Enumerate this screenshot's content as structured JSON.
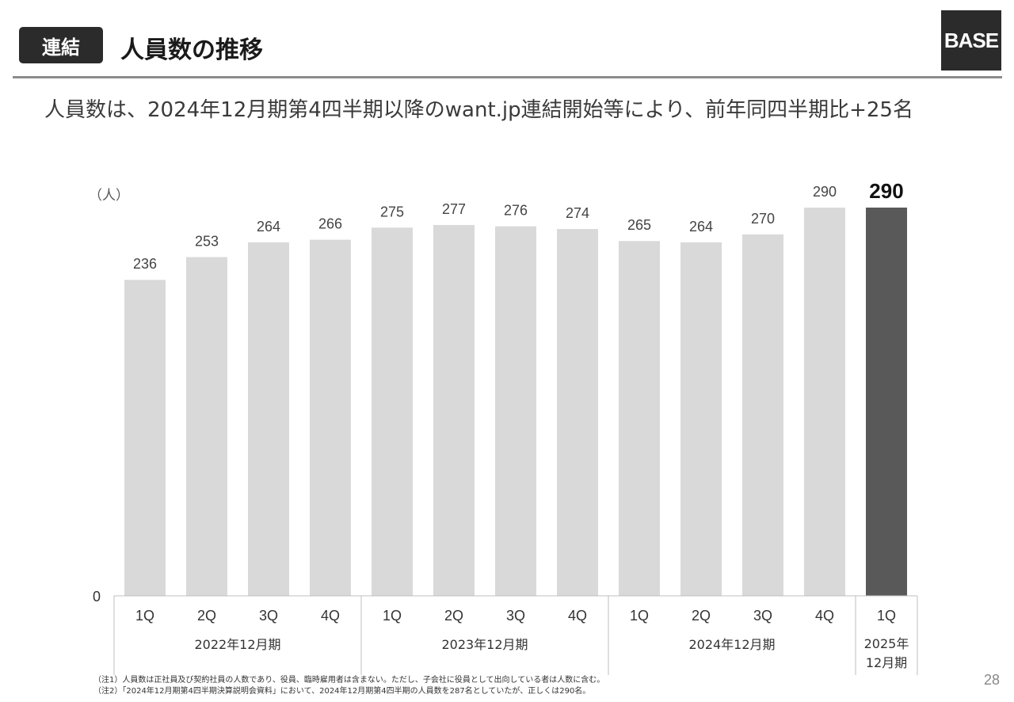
{
  "header": {
    "badge": "連結",
    "title": "人員数の推移",
    "logo": "BASE"
  },
  "subtitle": "人員数は、2024年12月期第4四半期以降のwant.jp連結開始等により、前年同四半期比+25名",
  "chart_data": {
    "type": "bar",
    "unit_label": "（人）",
    "ylim": [
      0,
      290
    ],
    "y_tick_labels": [
      "0"
    ],
    "grid": false,
    "categories": [
      "1Q",
      "2Q",
      "3Q",
      "4Q",
      "1Q",
      "2Q",
      "3Q",
      "4Q",
      "1Q",
      "2Q",
      "3Q",
      "4Q",
      "1Q"
    ],
    "groups": [
      {
        "label": "2022年12月期",
        "count": 4
      },
      {
        "label": "2023年12月期",
        "count": 4
      },
      {
        "label": "2024年12月期",
        "count": 4
      },
      {
        "label": "2025年\n12月期",
        "count": 1
      }
    ],
    "values": [
      236,
      253,
      264,
      266,
      275,
      277,
      276,
      274,
      265,
      264,
      270,
      290,
      290
    ],
    "highlight_index": 12,
    "colors": {
      "bar": "#d9d9d9",
      "highlight": "#595959",
      "axis": "#bfbfbf"
    }
  },
  "notes": [
    "（注1）人員数は正社員及び契約社員の人数であり、役員、臨時雇用者は含まない。ただし、子会社に役員として出向している者は人数に含む。",
    "（注2）「2024年12月期第4四半期決算説明会資料」において、2024年12月期第4四半期の人員数を287名としていたが、正しくは290名。"
  ],
  "page_number": "28"
}
